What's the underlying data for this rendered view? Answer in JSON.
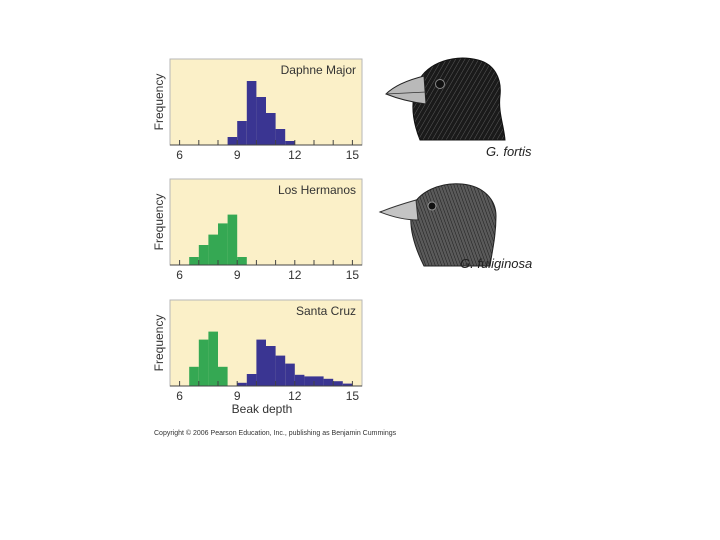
{
  "chart_data": [
    {
      "type": "bar",
      "title": "Daphne Major",
      "xlabel": "",
      "ylabel": "Frequency",
      "xlim": [
        5.5,
        15.5
      ],
      "ylim": [
        0,
        10
      ],
      "xticks": [
        "6",
        "9",
        "12",
        "15"
      ],
      "bin_width": 0.5,
      "series": [
        {
          "name": "G. fortis",
          "color": "#3a3592",
          "x": [
            8.5,
            9.0,
            9.5,
            10.0,
            10.5,
            11.0,
            11.5
          ],
          "values": [
            1,
            3,
            8,
            6,
            4,
            2,
            0.5
          ]
        }
      ]
    },
    {
      "type": "bar",
      "title": "Los Hermanos",
      "xlabel": "",
      "ylabel": "Frequency",
      "xlim": [
        5.5,
        15.5
      ],
      "ylim": [
        0,
        10
      ],
      "xticks": [
        "6",
        "9",
        "12",
        "15"
      ],
      "bin_width": 0.5,
      "series": [
        {
          "name": "G. fuliginosa",
          "color": "#35a853",
          "x": [
            6.5,
            7.0,
            7.5,
            8.0,
            8.5,
            9.0
          ],
          "values": [
            1,
            2.5,
            3.8,
            5.2,
            6.3,
            1
          ]
        }
      ]
    },
    {
      "type": "bar",
      "title": "Santa Cruz",
      "xlabel": "Beak depth",
      "ylabel": "Frequency",
      "xlim": [
        5.5,
        15.5
      ],
      "ylim": [
        0,
        10
      ],
      "xticks": [
        "6",
        "9",
        "12",
        "15"
      ],
      "bin_width": 0.5,
      "series": [
        {
          "name": "G. fuliginosa",
          "color": "#35a853",
          "x": [
            6.5,
            7.0,
            7.5,
            8.0
          ],
          "values": [
            2.4,
            5.8,
            6.8,
            2.4
          ]
        },
        {
          "name": "G. fortis",
          "color": "#3a3592",
          "x": [
            9.0,
            9.5,
            10.0,
            10.5,
            11.0,
            11.5,
            12.0,
            12.5,
            13.0,
            13.5,
            14.0,
            14.5
          ],
          "values": [
            0.4,
            1.5,
            5.8,
            5.0,
            3.8,
            2.8,
            1.4,
            1.2,
            1.2,
            0.9,
            0.6,
            0.3
          ]
        }
      ]
    }
  ],
  "birds": [
    {
      "name": "G. fortis"
    },
    {
      "name": "G. fuliginosa"
    }
  ],
  "copyright": "Copyright © 2006 Pearson Education, Inc., publishing as Benjamin Cummings"
}
